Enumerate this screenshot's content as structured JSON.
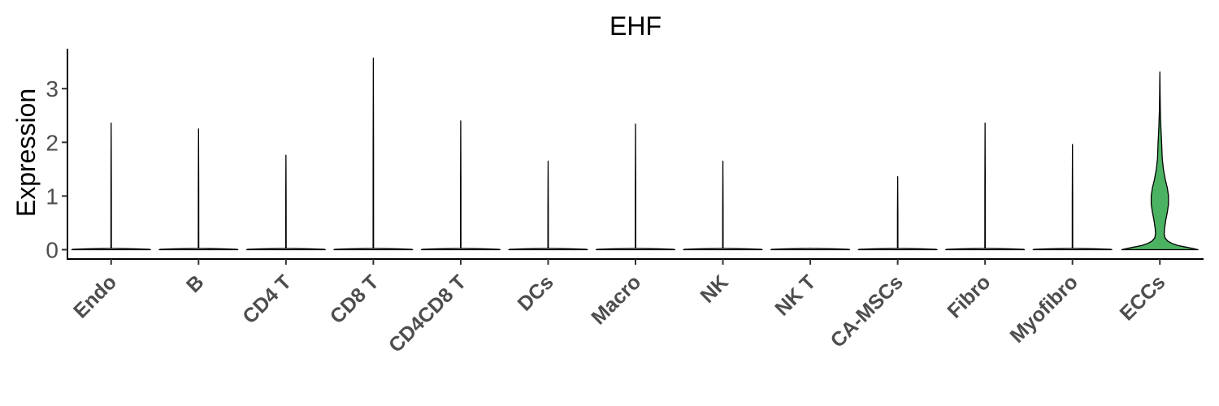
{
  "chart_data": {
    "type": "violin",
    "title": "EHF",
    "ylabel": "Expression",
    "xlabel": "",
    "ylim": [
      -0.15,
      3.75
    ],
    "yticks": [
      0,
      1,
      2,
      3
    ],
    "ytick_labels": [
      "0",
      "1",
      "2",
      "3"
    ],
    "grid": false,
    "legend": "none",
    "categories": [
      "Endo",
      "B",
      "CD4 T",
      "CD8 T",
      "CD4CD8 T",
      "DCs",
      "Macro",
      "NK",
      "NK T",
      "CA-MSCs",
      "Fibro",
      "Myofibro",
      "ECCs"
    ],
    "max_values": [
      2.36,
      2.25,
      1.76,
      3.57,
      2.4,
      1.65,
      2.34,
      1.65,
      0.0,
      1.36,
      2.36,
      1.96,
      3.31
    ],
    "series_colors": [
      "#ffffff",
      "#ffffff",
      "#ffffff",
      "#ffffff",
      "#ffffff",
      "#ffffff",
      "#ffffff",
      "#ffffff",
      "#ffffff",
      "#ffffff",
      "#ffffff",
      "#ffffff",
      "#4bb261"
    ],
    "density_profiles": [
      null,
      null,
      null,
      null,
      null,
      null,
      null,
      null,
      null,
      null,
      null,
      null,
      [
        [
          0.0,
          0.97
        ],
        [
          0.02,
          0.85
        ],
        [
          0.05,
          0.65
        ],
        [
          0.08,
          0.45
        ],
        [
          0.12,
          0.3
        ],
        [
          0.16,
          0.2
        ],
        [
          0.22,
          0.13
        ],
        [
          0.3,
          0.11
        ],
        [
          0.4,
          0.12
        ],
        [
          0.55,
          0.15
        ],
        [
          0.7,
          0.19
        ],
        [
          0.85,
          0.22
        ],
        [
          1.0,
          0.22
        ],
        [
          1.15,
          0.19
        ],
        [
          1.3,
          0.14
        ],
        [
          1.5,
          0.09
        ],
        [
          1.7,
          0.06
        ],
        [
          2.0,
          0.045
        ],
        [
          2.3,
          0.025
        ],
        [
          2.6,
          0.012
        ],
        [
          2.9,
          0.006
        ],
        [
          3.31,
          0.0
        ]
      ]
    ]
  }
}
